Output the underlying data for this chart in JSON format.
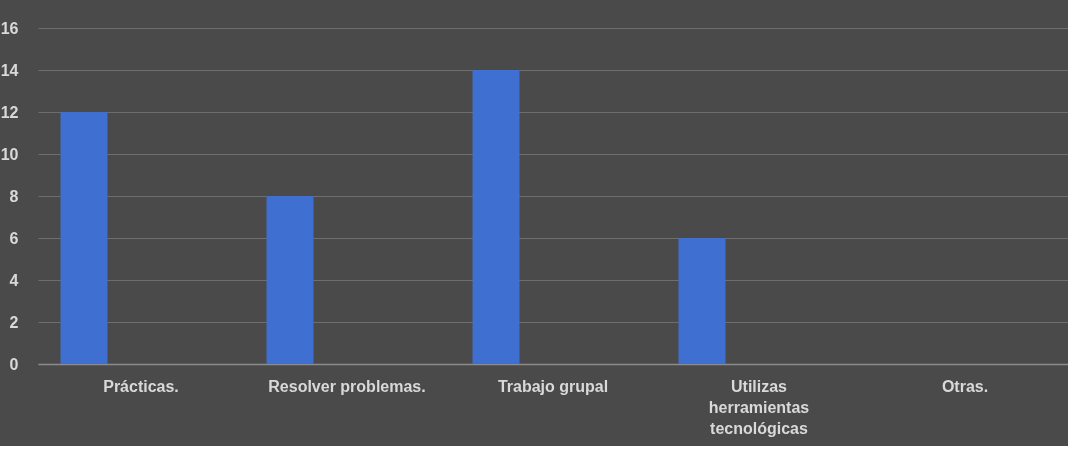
{
  "chart_data": {
    "type": "bar",
    "categories": [
      "Prácticas.",
      "Resolver problemas.",
      "Trabajo grupal",
      "Utilizas herramientas tecnológicas",
      "Otras."
    ],
    "values": [
      12,
      8,
      14,
      6,
      0
    ],
    "color": "#3f6fd0",
    "ylim": [
      0,
      16
    ],
    "yticks": [
      0,
      2,
      4,
      6,
      8,
      10,
      12,
      14,
      16
    ],
    "grid": "y"
  }
}
